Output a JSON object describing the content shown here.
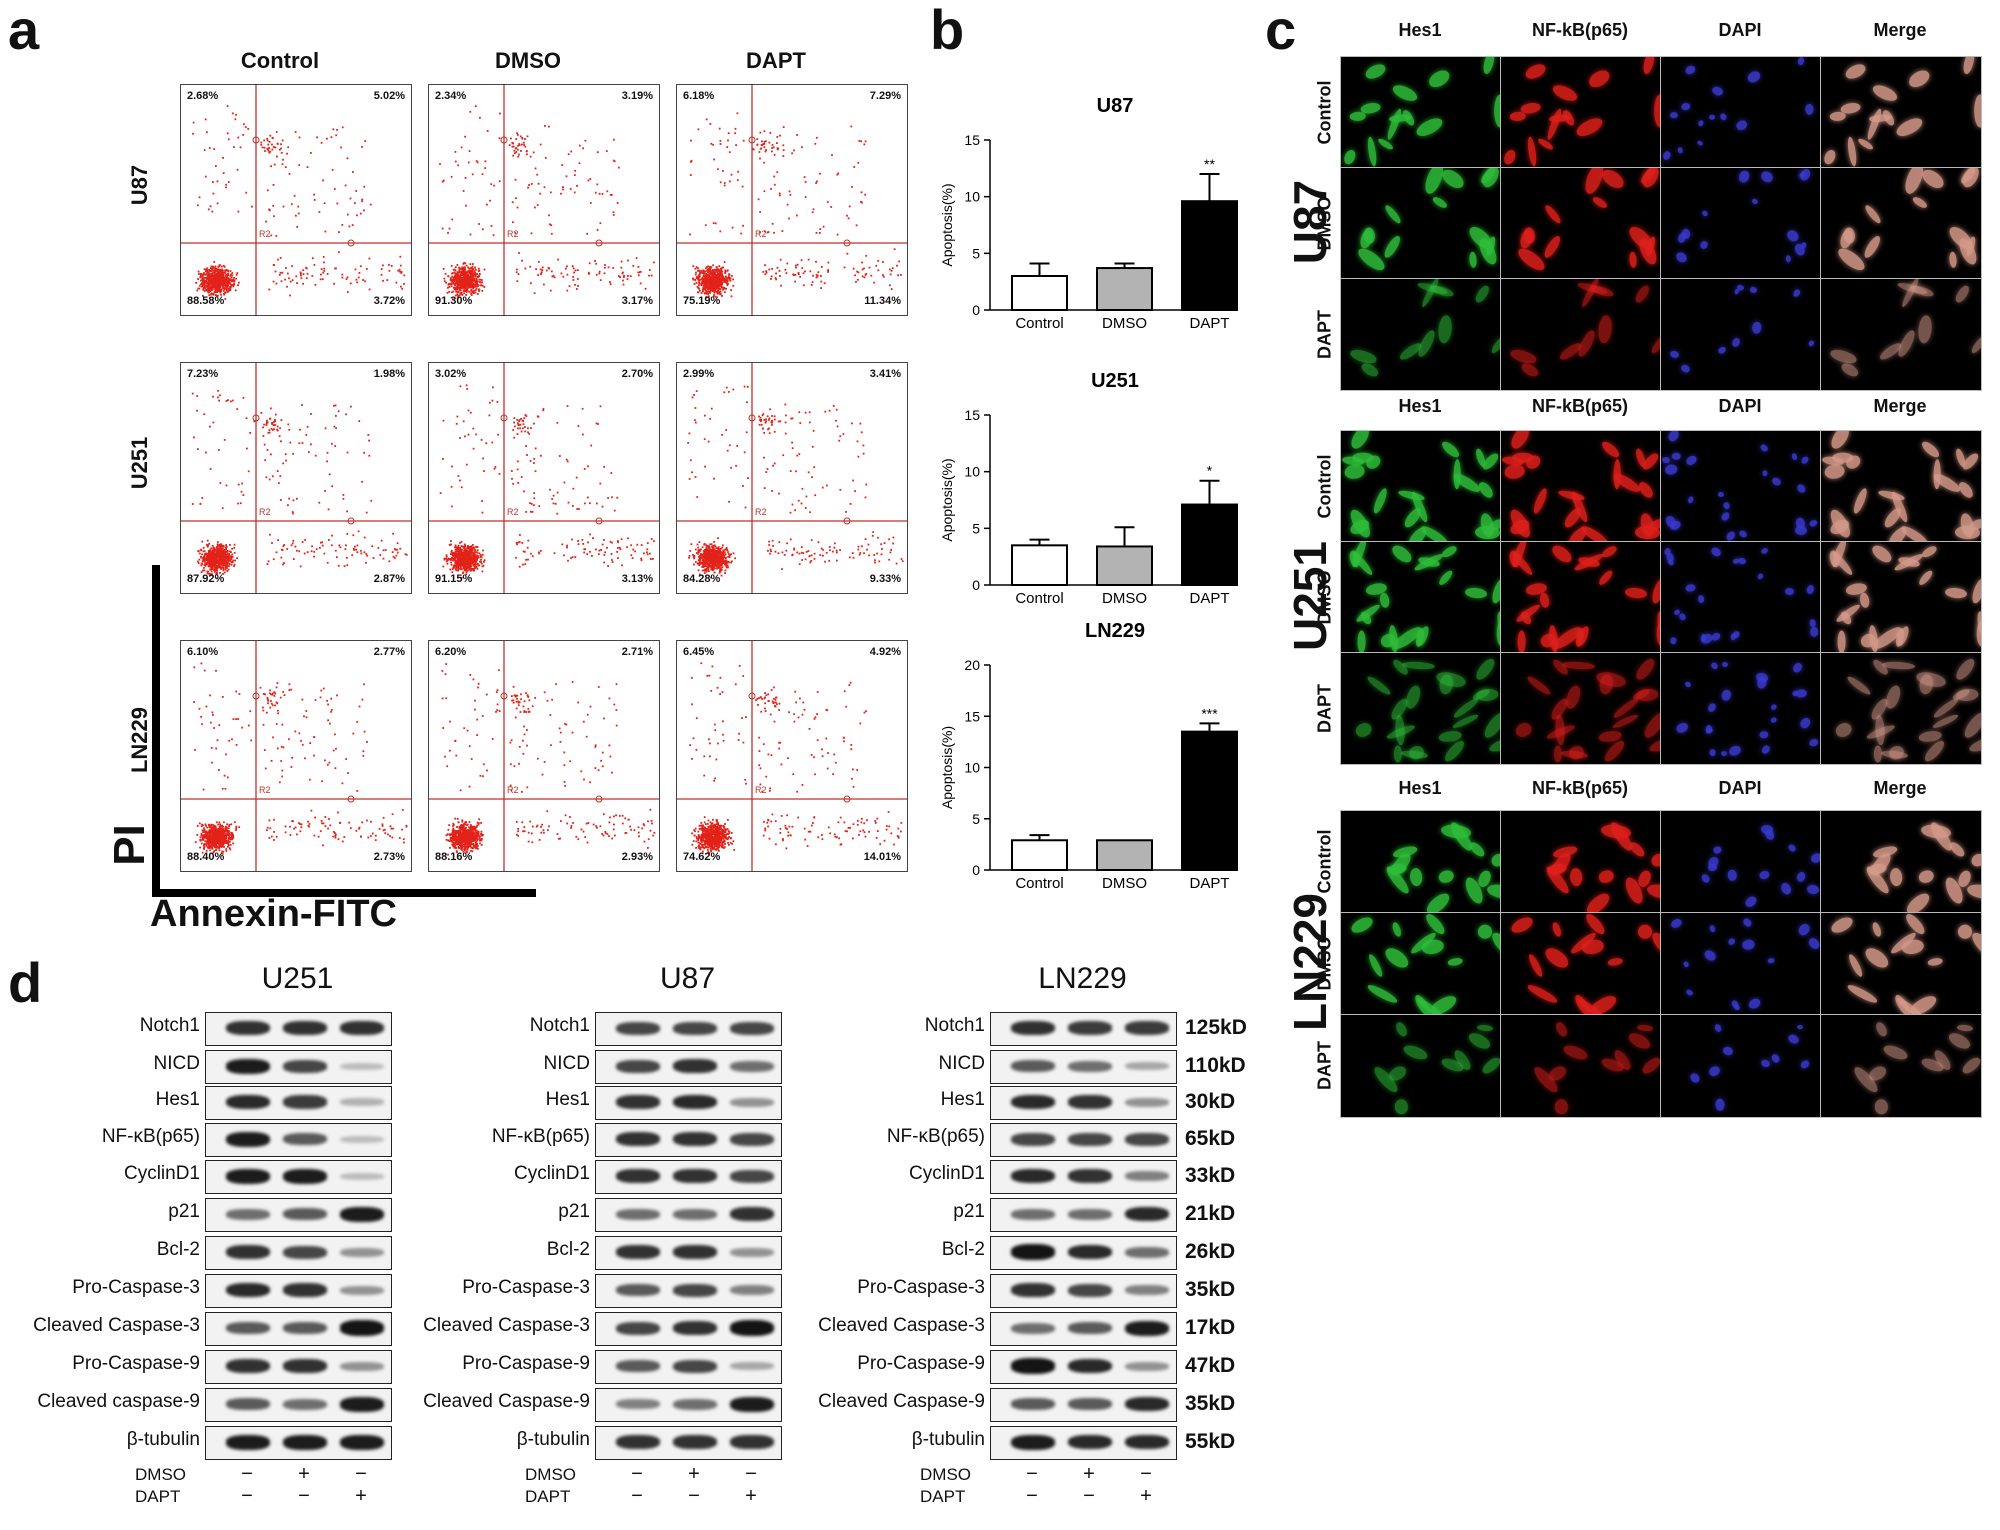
{
  "panel_labels": {
    "a": "a",
    "b": "b",
    "c": "c",
    "d": "d"
  },
  "panel_a": {
    "columns": [
      "Control",
      "DMSO",
      "DAPT"
    ],
    "rows": [
      "U87",
      "U251",
      "LN229"
    ],
    "gate_label": "R2",
    "axis_x": "Annexin-FITC",
    "axis_y": "PI",
    "quadrants": [
      [
        [
          "2.68%",
          "5.02%",
          "88.58%",
          "3.72%"
        ],
        [
          "2.34%",
          "3.19%",
          "91.30%",
          "3.17%"
        ],
        [
          "6.18%",
          "7.29%",
          "75.19%",
          "11.34%"
        ]
      ],
      [
        [
          "7.23%",
          "1.98%",
          "87.92%",
          "2.87%"
        ],
        [
          "3.02%",
          "2.70%",
          "91.15%",
          "3.13%"
        ],
        [
          "2.99%",
          "3.41%",
          "84.28%",
          "9.33%"
        ]
      ],
      [
        [
          "6.10%",
          "2.77%",
          "88.40%",
          "2.73%"
        ],
        [
          "6.20%",
          "2.71%",
          "88.16%",
          "2.93%"
        ],
        [
          "6.45%",
          "4.92%",
          "74.62%",
          "14.01%"
        ]
      ]
    ]
  },
  "chart_data": [
    {
      "type": "bar",
      "title": "U87",
      "ylabel": "Apoptosis(%)",
      "categories": [
        "Control",
        "DMSO",
        "DAPT"
      ],
      "values": [
        3.0,
        3.7,
        9.6
      ],
      "errors": [
        1.1,
        0.4,
        2.4
      ],
      "ylim": [
        0,
        15
      ],
      "ticks": [
        0,
        5,
        10,
        15
      ],
      "sig": [
        "",
        "",
        "**"
      ],
      "colors": [
        "#ffffff",
        "#b3b3b3",
        "#000000"
      ]
    },
    {
      "type": "bar",
      "title": "U251",
      "ylabel": "Apoptosis(%)",
      "categories": [
        "Control",
        "DMSO",
        "DAPT"
      ],
      "values": [
        3.5,
        3.4,
        7.1
      ],
      "errors": [
        0.5,
        1.7,
        2.1
      ],
      "ylim": [
        0,
        15
      ],
      "ticks": [
        0,
        5,
        10,
        15
      ],
      "sig": [
        "",
        "",
        "*"
      ],
      "colors": [
        "#ffffff",
        "#b3b3b3",
        "#000000"
      ]
    },
    {
      "type": "bar",
      "title": "LN229",
      "ylabel": "Apoptosis(%)",
      "categories": [
        "Control",
        "DMSO",
        "DAPT"
      ],
      "values": [
        2.9,
        2.9,
        13.5
      ],
      "errors": [
        0.5,
        0,
        0.8
      ],
      "ylim": [
        0,
        20
      ],
      "ticks": [
        0,
        5,
        10,
        15,
        20
      ],
      "sig": [
        "",
        "",
        "***"
      ],
      "colors": [
        "#ffffff",
        "#b3b3b3",
        "#000000"
      ]
    }
  ],
  "panel_c": {
    "columns": [
      "Hes1",
      "NF-kB(p65)",
      "DAPI",
      "Merge"
    ],
    "conditions": [
      "Control",
      "DMSO",
      "DAPT"
    ],
    "cell_lines": [
      "U87",
      "U251",
      "LN229"
    ],
    "channel_colors": [
      "#2fbf3a",
      "#e0201c",
      "#3a3ad0",
      "#d69a8a"
    ]
  },
  "panel_d": {
    "blots": [
      {
        "title": "U251",
        "labels": [
          "Notch1",
          "NICD",
          "Hes1",
          "NF-κB(p65)",
          "CyclinD1",
          "p21",
          "Bcl-2",
          "Pro-Caspase-3",
          "Cleaved Caspase-3",
          "Pro-Caspase-9",
          "Cleaved caspase-9",
          "β-tubulin"
        ],
        "intensity": [
          [
            0.8,
            0.8,
            0.8
          ],
          [
            0.9,
            0.7,
            0.1
          ],
          [
            0.85,
            0.75,
            0.15
          ],
          [
            0.9,
            0.6,
            0.1
          ],
          [
            0.9,
            0.9,
            0.1
          ],
          [
            0.5,
            0.6,
            0.9
          ],
          [
            0.8,
            0.7,
            0.3
          ],
          [
            0.85,
            0.8,
            0.3
          ],
          [
            0.6,
            0.6,
            0.95
          ],
          [
            0.8,
            0.8,
            0.3
          ],
          [
            0.6,
            0.5,
            0.9
          ],
          [
            0.9,
            0.9,
            0.9
          ]
        ]
      },
      {
        "title": "U87",
        "labels": [
          "Notch1",
          "NICD",
          "Hes1",
          "NF-κB(p65)",
          "CyclinD1",
          "p21",
          "Bcl-2",
          "Pro-Caspase-3",
          "Cleaved Caspase-3",
          "Pro-Caspase-9",
          "Cleaved Caspase-9",
          "β-tubulin"
        ],
        "intensity": [
          [
            0.7,
            0.7,
            0.7
          ],
          [
            0.7,
            0.8,
            0.5
          ],
          [
            0.8,
            0.85,
            0.3
          ],
          [
            0.8,
            0.8,
            0.7
          ],
          [
            0.8,
            0.8,
            0.7
          ],
          [
            0.5,
            0.5,
            0.8
          ],
          [
            0.8,
            0.8,
            0.3
          ],
          [
            0.6,
            0.7,
            0.4
          ],
          [
            0.7,
            0.8,
            0.95
          ],
          [
            0.6,
            0.7,
            0.2
          ],
          [
            0.4,
            0.5,
            0.9
          ],
          [
            0.8,
            0.8,
            0.8
          ]
        ]
      },
      {
        "title": "LN229",
        "labels": [
          "Notch1",
          "NICD",
          "Hes1",
          "NF-κB(p65)",
          "CyclinD1",
          "p21",
          "Bcl-2",
          "Pro-Caspase-3",
          "Cleaved Caspase-3",
          "Pro-Caspase-9",
          "Cleaved Caspase-9",
          "β-tubulin"
        ],
        "intensity": [
          [
            0.8,
            0.75,
            0.75
          ],
          [
            0.6,
            0.5,
            0.2
          ],
          [
            0.85,
            0.8,
            0.3
          ],
          [
            0.7,
            0.7,
            0.7
          ],
          [
            0.85,
            0.8,
            0.4
          ],
          [
            0.5,
            0.5,
            0.85
          ],
          [
            0.95,
            0.85,
            0.5
          ],
          [
            0.8,
            0.7,
            0.4
          ],
          [
            0.5,
            0.6,
            0.9
          ],
          [
            0.95,
            0.85,
            0.3
          ],
          [
            0.6,
            0.6,
            0.85
          ],
          [
            0.9,
            0.85,
            0.85
          ]
        ]
      }
    ],
    "kd": [
      "125kD",
      "110kD",
      "30kD",
      "65kD",
      "33kD",
      "21kD",
      "26kD",
      "35kD",
      "17kD",
      "47kD",
      "35kD",
      "55kD"
    ],
    "treat_labels": [
      "DMSO",
      "DAPT"
    ],
    "treat_signs": [
      [
        "−",
        "+",
        "−"
      ],
      [
        "−",
        "−",
        "+"
      ]
    ]
  }
}
